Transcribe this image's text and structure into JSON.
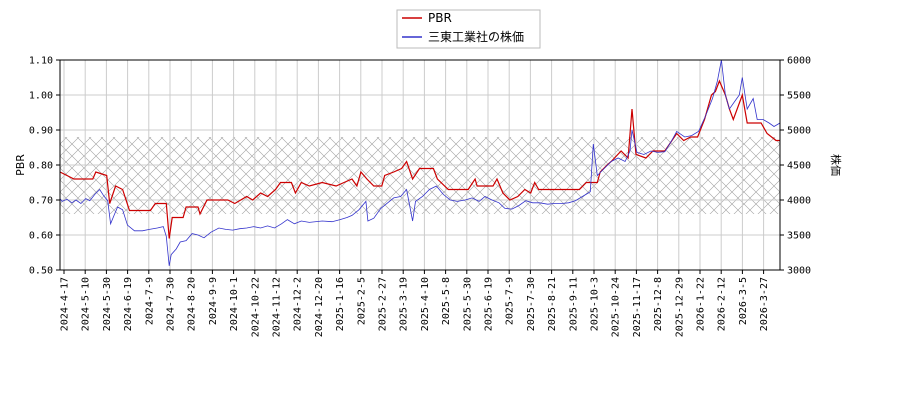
{
  "chart_data": {
    "type": "line",
    "legend_position": "top-center",
    "grid": true,
    "band": {
      "y_left": [
        0.66,
        0.88
      ]
    },
    "left_axis": {
      "label": "PBR",
      "ylim": [
        0.5,
        1.1
      ],
      "ticks": [
        "0.50",
        "0.60",
        "0.70",
        "0.80",
        "0.90",
        "1.00",
        "1.10"
      ]
    },
    "right_axis": {
      "label": "株価",
      "ylim": [
        3000,
        6000
      ],
      "ticks": [
        "3000",
        "3500",
        "4000",
        "4500",
        "5000",
        "5500",
        "6000"
      ]
    },
    "x_ticks": [
      "2024-4-17",
      "2024-5-10",
      "2024-5-30",
      "2024-6-19",
      "2024-7-9",
      "2024-7-30",
      "2024-8-20",
      "2024-9-9",
      "2024-10-1",
      "2024-10-22",
      "2024-11-12",
      "2024-12-2",
      "2024-12-20",
      "2025-1-16",
      "2025-2-5",
      "2025-2-27",
      "2025-3-19",
      "2025-4-10",
      "2025-5-8",
      "2025-5-30",
      "2025-6-19",
      "2025-7-9",
      "2025-7-30",
      "2025-8-21",
      "2025-9-11",
      "2025-10-3",
      "2025-10-24",
      "2025-11-17",
      "2025-12-8",
      "2025-12-29",
      "2026-1-22",
      "2026-2-12",
      "2026-3-5",
      "2026-3-27"
    ],
    "x_range": [
      "2024-4-17",
      "2026-4-12"
    ],
    "series": [
      {
        "name": "PBR",
        "color": "#cc0000",
        "axis": "left",
        "points": [
          [
            "2024-4-17",
            0.78
          ],
          [
            "2024-4-24",
            0.77
          ],
          [
            "2024-5-1",
            0.76
          ],
          [
            "2024-5-20",
            0.76
          ],
          [
            "2024-5-23",
            0.78
          ],
          [
            "2024-6-3",
            0.77
          ],
          [
            "2024-6-6",
            0.69
          ],
          [
            "2024-6-12",
            0.74
          ],
          [
            "2024-6-19",
            0.73
          ],
          [
            "2024-6-26",
            0.67
          ],
          [
            "2024-7-17",
            0.67
          ],
          [
            "2024-7-22",
            0.69
          ],
          [
            "2024-8-2",
            0.69
          ],
          [
            "2024-8-5",
            0.59
          ],
          [
            "2024-8-8",
            0.65
          ],
          [
            "2024-8-19",
            0.65
          ],
          [
            "2024-8-22",
            0.68
          ],
          [
            "2024-9-3",
            0.68
          ],
          [
            "2024-9-5",
            0.66
          ],
          [
            "2024-9-12",
            0.7
          ],
          [
            "2024-10-3",
            0.7
          ],
          [
            "2024-10-10",
            0.69
          ],
          [
            "2024-10-22",
            0.71
          ],
          [
            "2024-10-28",
            0.7
          ],
          [
            "2024-11-5",
            0.72
          ],
          [
            "2024-11-12",
            0.71
          ],
          [
            "2024-11-20",
            0.73
          ],
          [
            "2024-11-25",
            0.75
          ],
          [
            "2024-12-6",
            0.75
          ],
          [
            "2024-12-10",
            0.72
          ],
          [
            "2024-12-16",
            0.75
          ],
          [
            "2024-12-24",
            0.74
          ],
          [
            "2025-1-6",
            0.75
          ],
          [
            "2025-1-20",
            0.74
          ],
          [
            "2025-1-28",
            0.75
          ],
          [
            "2025-2-5",
            0.76
          ],
          [
            "2025-2-10",
            0.74
          ],
          [
            "2025-2-14",
            0.78
          ],
          [
            "2025-2-20",
            0.76
          ],
          [
            "2025-2-27",
            0.74
          ],
          [
            "2025-3-7",
            0.74
          ],
          [
            "2025-3-10",
            0.77
          ],
          [
            "2025-3-19",
            0.78
          ],
          [
            "2025-3-27",
            0.79
          ],
          [
            "2025-4-1",
            0.81
          ],
          [
            "2025-4-7",
            0.76
          ],
          [
            "2025-4-14",
            0.79
          ],
          [
            "2025-4-28",
            0.79
          ],
          [
            "2025-5-2",
            0.76
          ],
          [
            "2025-5-13",
            0.73
          ],
          [
            "2025-6-2",
            0.73
          ],
          [
            "2025-6-9",
            0.76
          ],
          [
            "2025-6-11",
            0.74
          ],
          [
            "2025-6-27",
            0.74
          ],
          [
            "2025-7-1",
            0.76
          ],
          [
            "2025-7-7",
            0.72
          ],
          [
            "2025-7-14",
            0.7
          ],
          [
            "2025-7-22",
            0.71
          ],
          [
            "2025-7-29",
            0.73
          ],
          [
            "2025-8-4",
            0.72
          ],
          [
            "2025-8-8",
            0.75
          ],
          [
            "2025-8-12",
            0.73
          ],
          [
            "2025-9-8",
            0.73
          ],
          [
            "2025-9-22",
            0.73
          ],
          [
            "2025-9-29",
            0.75
          ],
          [
            "2025-10-10",
            0.75
          ],
          [
            "2025-10-13",
            0.78
          ],
          [
            "2025-10-20",
            0.8
          ],
          [
            "2025-10-24",
            0.81
          ],
          [
            "2025-11-3",
            0.84
          ],
          [
            "2025-11-10",
            0.82
          ],
          [
            "2025-11-14",
            0.96
          ],
          [
            "2025-11-18",
            0.83
          ],
          [
            "2025-11-28",
            0.82
          ],
          [
            "2025-12-5",
            0.84
          ],
          [
            "2025-12-17",
            0.84
          ],
          [
            "2025-12-29",
            0.89
          ],
          [
            "2026-1-5",
            0.87
          ],
          [
            "2026-1-12",
            0.88
          ],
          [
            "2026-1-19",
            0.88
          ],
          [
            "2026-1-26",
            0.93
          ],
          [
            "2026-2-2",
            1.0
          ],
          [
            "2026-2-6",
            1.01
          ],
          [
            "2026-2-10",
            1.04
          ],
          [
            "2026-2-16",
            1.0
          ],
          [
            "2026-2-20",
            0.96
          ],
          [
            "2026-2-24",
            0.93
          ],
          [
            "2026-3-5",
            1.0
          ],
          [
            "2026-3-10",
            0.92
          ],
          [
            "2026-3-24",
            0.92
          ],
          [
            "2026-3-30",
            0.89
          ],
          [
            "2026-4-8",
            0.87
          ],
          [
            "2026-4-12",
            0.87
          ]
        ]
      },
      {
        "name": "三東工業社の株価",
        "color": "#3333cc",
        "axis": "right",
        "points": [
          [
            "2024-4-17",
            4020
          ],
          [
            "2024-4-19",
            3980
          ],
          [
            "2024-4-24",
            4010
          ],
          [
            "2024-4-29",
            3960
          ],
          [
            "2024-5-3",
            4000
          ],
          [
            "2024-5-8",
            3950
          ],
          [
            "2024-5-13",
            4020
          ],
          [
            "2024-5-17",
            3990
          ],
          [
            "2024-5-22",
            4080
          ],
          [
            "2024-5-27",
            4150
          ],
          [
            "2024-5-31",
            4060
          ],
          [
            "2024-6-4",
            3990
          ],
          [
            "2024-6-7",
            3660
          ],
          [
            "2024-6-11",
            3800
          ],
          [
            "2024-6-14",
            3900
          ],
          [
            "2024-6-19",
            3860
          ],
          [
            "2024-6-24",
            3640
          ],
          [
            "2024-7-1",
            3560
          ],
          [
            "2024-7-9",
            3560
          ],
          [
            "2024-7-16",
            3580
          ],
          [
            "2024-7-24",
            3600
          ],
          [
            "2024-7-30",
            3620
          ],
          [
            "2024-8-2",
            3480
          ],
          [
            "2024-8-5",
            3060
          ],
          [
            "2024-8-7",
            3220
          ],
          [
            "2024-8-12",
            3300
          ],
          [
            "2024-8-16",
            3400
          ],
          [
            "2024-8-22",
            3420
          ],
          [
            "2024-8-28",
            3520
          ],
          [
            "2024-9-3",
            3500
          ],
          [
            "2024-9-9",
            3460
          ],
          [
            "2024-9-16",
            3540
          ],
          [
            "2024-9-24",
            3600
          ],
          [
            "2024-10-1",
            3580
          ],
          [
            "2024-10-8",
            3570
          ],
          [
            "2024-10-15",
            3590
          ],
          [
            "2024-10-22",
            3600
          ],
          [
            "2024-10-29",
            3620
          ],
          [
            "2024-11-5",
            3600
          ],
          [
            "2024-11-12",
            3630
          ],
          [
            "2024-11-19",
            3600
          ],
          [
            "2024-11-26",
            3660
          ],
          [
            "2024-12-2",
            3720
          ],
          [
            "2024-12-9",
            3660
          ],
          [
            "2024-12-16",
            3700
          ],
          [
            "2024-12-24",
            3680
          ],
          [
            "2025-1-6",
            3700
          ],
          [
            "2025-1-16",
            3690
          ],
          [
            "2025-1-24",
            3720
          ],
          [
            "2025-1-31",
            3750
          ],
          [
            "2025-2-5",
            3780
          ],
          [
            "2025-2-12",
            3860
          ],
          [
            "2025-2-19",
            3980
          ],
          [
            "2025-2-21",
            3700
          ],
          [
            "2025-2-27",
            3740
          ],
          [
            "2025-3-6",
            3880
          ],
          [
            "2025-3-13",
            3960
          ],
          [
            "2025-3-19",
            4030
          ],
          [
            "2025-3-26",
            4050
          ],
          [
            "2025-4-1",
            4150
          ],
          [
            "2025-4-7",
            3700
          ],
          [
            "2025-4-10",
            3980
          ],
          [
            "2025-4-17",
            4050
          ],
          [
            "2025-4-24",
            4150
          ],
          [
            "2025-5-1",
            4200
          ],
          [
            "2025-5-8",
            4080
          ],
          [
            "2025-5-15",
            4000
          ],
          [
            "2025-5-22",
            3980
          ],
          [
            "2025-5-30",
            4000
          ],
          [
            "2025-6-6",
            4030
          ],
          [
            "2025-6-13",
            3980
          ],
          [
            "2025-6-19",
            4050
          ],
          [
            "2025-6-26",
            4000
          ],
          [
            "2025-7-3",
            3960
          ],
          [
            "2025-7-9",
            3880
          ],
          [
            "2025-7-16",
            3870
          ],
          [
            "2025-7-23",
            3920
          ],
          [
            "2025-7-30",
            3990
          ],
          [
            "2025-8-6",
            3960
          ],
          [
            "2025-8-13",
            3960
          ],
          [
            "2025-8-21",
            3940
          ],
          [
            "2025-8-28",
            3950
          ],
          [
            "2025-9-4",
            3950
          ],
          [
            "2025-9-11",
            3960
          ],
          [
            "2025-9-18",
            3990
          ],
          [
            "2025-9-25",
            4050
          ],
          [
            "2025-10-1",
            4100
          ],
          [
            "2025-10-3",
            4120
          ],
          [
            "2025-10-6",
            4800
          ],
          [
            "2025-10-10",
            4350
          ],
          [
            "2025-10-17",
            4450
          ],
          [
            "2025-10-24",
            4550
          ],
          [
            "2025-10-31",
            4600
          ],
          [
            "2025-11-7",
            4550
          ],
          [
            "2025-11-12",
            4700
          ],
          [
            "2025-11-14",
            5000
          ],
          [
            "2025-11-19",
            4680
          ],
          [
            "2025-11-26",
            4650
          ],
          [
            "2025-12-3",
            4700
          ],
          [
            "2025-12-10",
            4680
          ],
          [
            "2025-12-17",
            4690
          ],
          [
            "2025-12-24",
            4850
          ],
          [
            "2025-12-29",
            4980
          ],
          [
            "2026-1-6",
            4900
          ],
          [
            "2026-1-13",
            4920
          ],
          [
            "2026-1-20",
            4980
          ],
          [
            "2026-1-27",
            5200
          ],
          [
            "2026-2-3",
            5450
          ],
          [
            "2026-2-8",
            5700
          ],
          [
            "2026-2-12",
            6000
          ],
          [
            "2026-2-16",
            5500
          ],
          [
            "2026-2-20",
            5300
          ],
          [
            "2026-2-25",
            5400
          ],
          [
            "2026-3-2",
            5500
          ],
          [
            "2026-3-5",
            5750
          ],
          [
            "2026-3-10",
            5300
          ],
          [
            "2026-3-16",
            5450
          ],
          [
            "2026-3-20",
            5150
          ],
          [
            "2026-3-26",
            5150
          ],
          [
            "2026-4-1",
            5100
          ],
          [
            "2026-4-6",
            5050
          ],
          [
            "2026-4-12",
            5100
          ]
        ]
      }
    ]
  }
}
